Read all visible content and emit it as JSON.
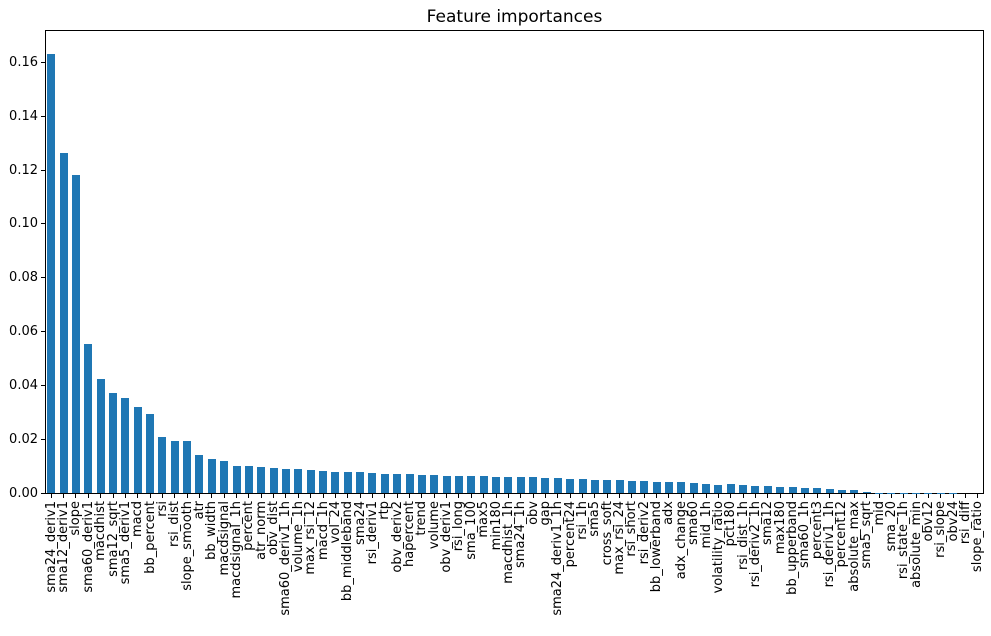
{
  "figure": {
    "background": "#ffffff",
    "text_color": "#000000",
    "axis_color": "#000000"
  },
  "chart_data": {
    "type": "bar",
    "title": "Feature importances",
    "xlabel": "",
    "ylabel": "",
    "bar_color": "#1f77b4",
    "grid": false,
    "legend": null,
    "xtick_rotation": 90,
    "ylim": [
      0,
      0.172
    ],
    "yticks": [
      0.0,
      0.02,
      0.04,
      0.06,
      0.08,
      0.1,
      0.12,
      0.14,
      0.16
    ],
    "ytick_labels": [
      "0.00",
      "0.02",
      "0.04",
      "0.06",
      "0.08",
      "0.10",
      "0.12",
      "0.14",
      "0.16"
    ],
    "categories": [
      "sma24_deriv1",
      "sma12_deriv1",
      "slope",
      "sma60_deriv1",
      "macdhist",
      "sma12_sqrt",
      "sma5_deriv1",
      "macd",
      "bb_percent",
      "rsi",
      "rsi_dist",
      "slope_smooth",
      "atr",
      "bb_width",
      "macdsignal",
      "macdsignal_1h",
      "percent",
      "atr_norm",
      "obv_dist",
      "sma60_deriv1_1h",
      "volume_1h",
      "max_rsi_12",
      "macd_1h",
      "vol_24",
      "bb_middleband",
      "sma24",
      "rsi_deriv1",
      "rtp",
      "obv_deriv2",
      "hapercent",
      "trend",
      "volume",
      "obv_deriv1",
      "rsi_long",
      "sma_100",
      "max5",
      "min180",
      "macdhist_1h",
      "sma24_1h",
      "obv",
      "gap",
      "sma24_deriv1_1h",
      "percent24",
      "rsi_1h",
      "sma5",
      "cross_soft",
      "max_rsi_24",
      "rsi_short",
      "rsi_deriv2",
      "bb_lowerband",
      "adx",
      "adx_change",
      "sma60",
      "mid_1h",
      "volatility_ratio",
      "pct180",
      "rsi_dist_1h",
      "rsi_deriv2_1h",
      "sma12",
      "max180",
      "bb_upperband",
      "sma60_1h",
      "percent3",
      "rsi_deriv1_1h",
      "percent12",
      "absolute_max",
      "sma5_sqrt",
      "mid",
      "sma_20",
      "rsi_state_1h",
      "absolute_min",
      "obv12",
      "rsi_slope",
      "obv24",
      "rsi_diff",
      "slope_ratio"
    ],
    "values": [
      0.163,
      0.1262,
      0.118,
      0.0553,
      0.0425,
      0.0372,
      0.0353,
      0.032,
      0.0295,
      0.0208,
      0.0195,
      0.0193,
      0.0143,
      0.0126,
      0.0118,
      0.01,
      0.0099,
      0.0096,
      0.0094,
      0.009,
      0.0088,
      0.0086,
      0.0083,
      0.008,
      0.0078,
      0.0077,
      0.0075,
      0.0072,
      0.007,
      0.0069,
      0.0067,
      0.0066,
      0.0065,
      0.0064,
      0.0063,
      0.0062,
      0.0061,
      0.006,
      0.0059,
      0.0058,
      0.0056,
      0.0055,
      0.0053,
      0.0052,
      0.005,
      0.0049,
      0.0047,
      0.0046,
      0.0044,
      0.0042,
      0.0041,
      0.004,
      0.0038,
      0.0035,
      0.003,
      0.0032,
      0.0029,
      0.0027,
      0.0025,
      0.0023,
      0.0021,
      0.0019,
      0.0018,
      0.0016,
      0.0013,
      0.001,
      0.0004,
      0.0002,
      0.0002,
      0.0001,
      0.0001,
      0.0001,
      0.0001,
      0.0001,
      0.0,
      0.0
    ]
  }
}
